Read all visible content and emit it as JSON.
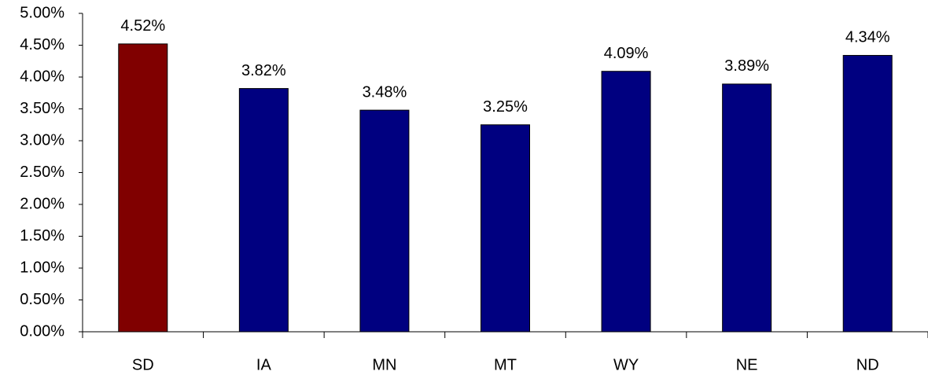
{
  "chart_data": {
    "type": "bar",
    "categories": [
      "SD",
      "IA",
      "MN",
      "MT",
      "WY",
      "NE",
      "ND"
    ],
    "values": [
      4.52,
      3.82,
      3.48,
      3.25,
      4.09,
      3.89,
      4.34
    ],
    "value_labels": [
      "4.52%",
      "3.82%",
      "3.48%",
      "3.25%",
      "4.09%",
      "3.89%",
      "4.34%"
    ],
    "colors": [
      "#800000",
      "#000080",
      "#000080",
      "#000080",
      "#000080",
      "#000080",
      "#000080"
    ],
    "ylim": [
      0,
      5
    ],
    "yticks": [
      {
        "value": 0,
        "label": "0.00%"
      },
      {
        "value": 0.5,
        "label": "0.50%"
      },
      {
        "value": 1,
        "label": "1.00%"
      },
      {
        "value": 1.5,
        "label": "1.50%"
      },
      {
        "value": 2,
        "label": "2.00%"
      },
      {
        "value": 2.5,
        "label": "2.50%"
      },
      {
        "value": 3,
        "label": "3.00%"
      },
      {
        "value": 3.5,
        "label": "3.50%"
      },
      {
        "value": 4,
        "label": "4.00%"
      },
      {
        "value": 4.5,
        "label": "4.50%"
      },
      {
        "value": 5,
        "label": "5.00%"
      }
    ],
    "grid": false
  }
}
